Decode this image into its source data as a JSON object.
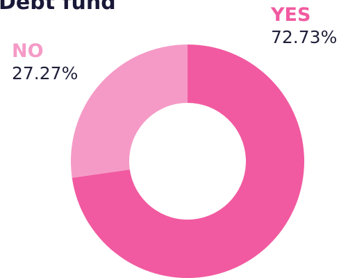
{
  "chart_data": {
    "type": "pie",
    "title": "Debt fund",
    "slices": [
      {
        "label": "YES",
        "value": 72.73,
        "display": "72.73%",
        "color": "#f15aa0"
      },
      {
        "label": "NO",
        "value": 27.27,
        "display": "27.27%",
        "color": "#f59ac6"
      }
    ],
    "donut": true
  }
}
